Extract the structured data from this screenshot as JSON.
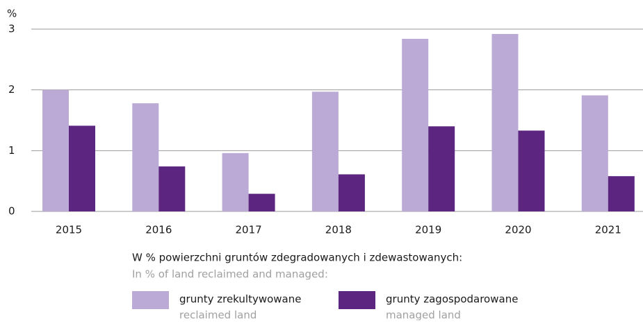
{
  "chart_data": {
    "type": "bar",
    "y_unit": "%",
    "categories": [
      "2015",
      "2016",
      "2017",
      "2018",
      "2019",
      "2020",
      "2021"
    ],
    "series": [
      {
        "name": "grunty zrekultywowane",
        "name_en": "reclaimed land",
        "color": "#bcaad6",
        "values": [
          2.0,
          1.78,
          0.96,
          1.97,
          2.84,
          2.92,
          1.91
        ]
      },
      {
        "name": "grunty zagospodarowane",
        "name_en": "managed land",
        "color": "#5b2580",
        "values": [
          1.41,
          0.74,
          0.29,
          0.61,
          1.4,
          1.33,
          0.58
        ]
      }
    ],
    "legend_title": "W % powierzchni gruntów zdegradowanych i zdewastowanych:",
    "legend_subtitle": "In % of land reclaimed and managed:",
    "ylim": [
      0,
      3
    ],
    "yticks": [
      0,
      1,
      2,
      3
    ],
    "grid": true,
    "legend": "bottom"
  }
}
